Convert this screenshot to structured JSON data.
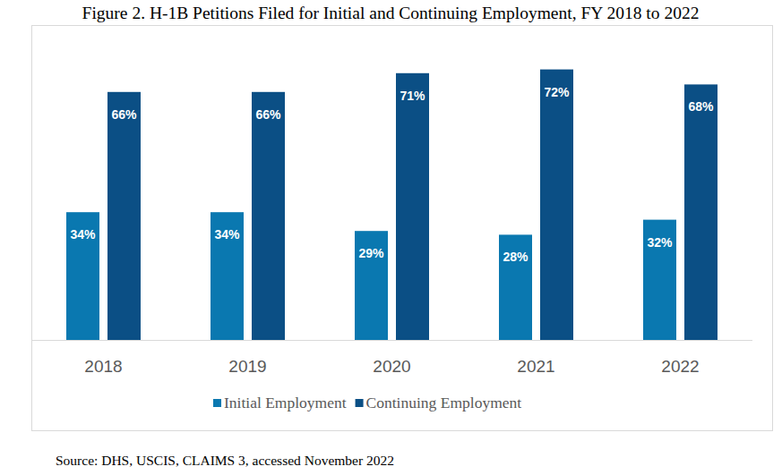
{
  "chart_data": {
    "type": "bar",
    "title": "Figure 2. H-1B Petitions Filed for Initial and Continuing Employment, FY 2018 to 2022",
    "annotations": [
      "Source: DHS, USCIS, CLAIMS 3, accessed November 2022"
    ],
    "categories": [
      "2018",
      "2019",
      "2020",
      "2021",
      "2022"
    ],
    "series": [
      {
        "name": "Initial Employment",
        "color": "#0a78b0",
        "values": [
          34,
          34,
          29,
          28,
          32
        ],
        "value_labels": [
          "34%",
          "34%",
          "29%",
          "28%",
          "32%"
        ]
      },
      {
        "name": "Continuing Employment",
        "color": "#0b4f85",
        "values": [
          66,
          66,
          71,
          72,
          68
        ],
        "value_labels": [
          "66%",
          "66%",
          "71%",
          "72%",
          "68%"
        ]
      }
    ],
    "ylim": [
      0,
      75
    ],
    "data_labels": true,
    "tick_labels": "x",
    "grid": false,
    "legend": "bottom"
  }
}
